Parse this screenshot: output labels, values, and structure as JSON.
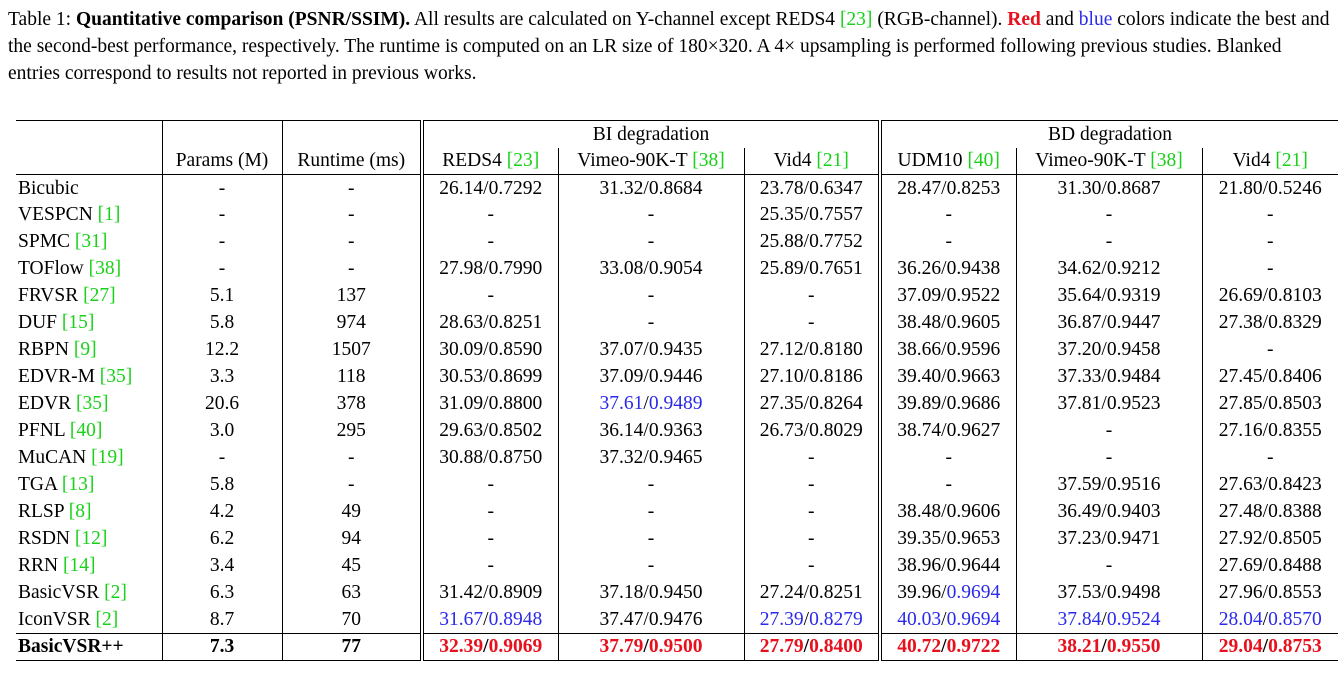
{
  "caption": {
    "label": "Table 1: ",
    "bold_title": "Quantitative comparison (PSNR/SSIM).",
    "text_1": " All results are calculated on Y-channel except REDS4 ",
    "cite_reds4": "[23]",
    "text_2": " (RGB-channel). ",
    "red_word": "Red",
    "text_3": " and ",
    "blue_word": "blue",
    "text_4": " colors indicate the best and the second-best performance, respectively. The runtime is computed on an LR size of 180×320. A 4× upsampling is performed following previous studies. Blanked entries correspond to results not reported in previous works."
  },
  "table": {
    "group_bi": "BI degradation",
    "group_bd": "BD degradation",
    "col_params": "Params (M)",
    "col_runtime": "Runtime (ms)",
    "bi_cols": [
      {
        "name": "REDS4",
        "cite": "[23]"
      },
      {
        "name": "Vimeo-90K-T",
        "cite": "[38]"
      },
      {
        "name": "Vid4",
        "cite": "[21]"
      }
    ],
    "bd_cols": [
      {
        "name": "UDM10",
        "cite": "[40]"
      },
      {
        "name": "Vimeo-90K-T",
        "cite": "[38]"
      },
      {
        "name": "Vid4",
        "cite": "[21]"
      }
    ],
    "rows": [
      {
        "method": "Bicubic",
        "cite": "",
        "params": "-",
        "runtime": "-",
        "vals": [
          "26.14/0.7292",
          "31.32/0.8684",
          "23.78/0.6347",
          "28.47/0.8253",
          "31.30/0.8687",
          "21.80/0.5246"
        ]
      },
      {
        "method": "VESPCN",
        "cite": "[1]",
        "params": "-",
        "runtime": "-",
        "vals": [
          "-",
          "-",
          "25.35/0.7557",
          "-",
          "-",
          "-"
        ]
      },
      {
        "method": "SPMC",
        "cite": "[31]",
        "params": "-",
        "runtime": "-",
        "vals": [
          "-",
          "-",
          "25.88/0.7752",
          "-",
          "-",
          "-"
        ]
      },
      {
        "method": "TOFlow",
        "cite": "[38]",
        "params": "-",
        "runtime": "-",
        "vals": [
          "27.98/0.7990",
          "33.08/0.9054",
          "25.89/0.7651",
          "36.26/0.9438",
          "34.62/0.9212",
          "-"
        ]
      },
      {
        "method": "FRVSR",
        "cite": "[27]",
        "params": "5.1",
        "runtime": "137",
        "vals": [
          "-",
          "-",
          "-",
          "37.09/0.9522",
          "35.64/0.9319",
          "26.69/0.8103"
        ]
      },
      {
        "method": "DUF",
        "cite": "[15]",
        "params": "5.8",
        "runtime": "974",
        "vals": [
          "28.63/0.8251",
          "-",
          "-",
          "38.48/0.9605",
          "36.87/0.9447",
          "27.38/0.8329"
        ]
      },
      {
        "method": "RBPN",
        "cite": "[9]",
        "params": "12.2",
        "runtime": "1507",
        "vals": [
          "30.09/0.8590",
          "37.07/0.9435",
          "27.12/0.8180",
          "38.66/0.9596",
          "37.20/0.9458",
          "-"
        ]
      },
      {
        "method": "EDVR-M",
        "cite": "[35]",
        "params": "3.3",
        "runtime": "118",
        "vals": [
          "30.53/0.8699",
          "37.09/0.9446",
          "27.10/0.8186",
          "39.40/0.9663",
          "37.33/0.9484",
          "27.45/0.8406"
        ]
      },
      {
        "method": "EDVR",
        "cite": "[35]",
        "params": "20.6",
        "runtime": "378",
        "vals": [
          "31.09/0.8800",
          "37.61/0.9489",
          "27.35/0.8264",
          "39.89/0.9686",
          "37.81/0.9523",
          "27.85/0.8503"
        ]
      },
      {
        "method": "PFNL",
        "cite": "[40]",
        "params": "3.0",
        "runtime": "295",
        "vals": [
          "29.63/0.8502",
          "36.14/0.9363",
          "26.73/0.8029",
          "38.74/0.9627",
          "-",
          "27.16/0.8355"
        ]
      },
      {
        "method": "MuCAN",
        "cite": "[19]",
        "params": "-",
        "runtime": "-",
        "vals": [
          "30.88/0.8750",
          "37.32/0.9465",
          "-",
          "-",
          "-",
          "-"
        ]
      },
      {
        "method": "TGA",
        "cite": "[13]",
        "params": "5.8",
        "runtime": "-",
        "vals": [
          "-",
          "-",
          "-",
          "-",
          "37.59/0.9516",
          "27.63/0.8423"
        ]
      },
      {
        "method": "RLSP",
        "cite": "[8]",
        "params": "4.2",
        "runtime": "49",
        "vals": [
          "-",
          "-",
          "-",
          "38.48/0.9606",
          "36.49/0.9403",
          "27.48/0.8388"
        ]
      },
      {
        "method": "RSDN",
        "cite": "[12]",
        "params": "6.2",
        "runtime": "94",
        "vals": [
          "-",
          "-",
          "-",
          "39.35/0.9653",
          "37.23/0.9471",
          "27.92/0.8505"
        ]
      },
      {
        "method": "RRN",
        "cite": "[14]",
        "params": "3.4",
        "runtime": "45",
        "vals": [
          "-",
          "-",
          "-",
          "38.96/0.9644",
          "-",
          "27.69/0.8488"
        ]
      },
      {
        "method": "BasicVSR",
        "cite": "[2]",
        "params": "6.3",
        "runtime": "63",
        "vals": [
          "31.42/0.8909",
          "37.18/0.9450",
          "27.24/0.8251",
          "39.96/0.9694",
          "37.53/0.9498",
          "27.96/0.8553"
        ]
      },
      {
        "method": "IconVSR",
        "cite": "[2]",
        "params": "8.7",
        "runtime": "70",
        "vals": [
          "31.67/0.8948",
          "37.47/0.9476",
          "27.39/0.8279",
          "40.03/0.9694",
          "37.84/0.9524",
          "28.04/0.8570"
        ]
      },
      {
        "method": "BasicVSR++",
        "cite": "",
        "params": "7.3",
        "runtime": "77",
        "vals": [
          "32.39/0.9069",
          "37.79/0.9500",
          "27.79/0.8400",
          "40.72/0.9722",
          "38.21/0.9550",
          "29.04/0.8753"
        ]
      }
    ],
    "highlight_colors": {
      "best": "#e8101c",
      "second": "#2a2ae8",
      "citation": "#19d119"
    },
    "highlights": {
      "EDVR": [
        null,
        [
          "second",
          "second"
        ],
        null,
        null,
        null,
        null
      ],
      "BasicVSR": [
        null,
        null,
        null,
        [
          null,
          "second"
        ],
        null,
        null
      ],
      "IconVSR": [
        [
          "second",
          "second"
        ],
        null,
        [
          "second",
          "second"
        ],
        [
          "second",
          "second"
        ],
        [
          "second",
          "second"
        ],
        [
          "second",
          "second"
        ]
      ],
      "BasicVSR++": [
        [
          "best",
          "best"
        ],
        [
          "best",
          "best"
        ],
        [
          "best",
          "best"
        ],
        [
          "best",
          "best"
        ],
        [
          "best",
          "best"
        ],
        [
          "best",
          "best"
        ]
      ]
    }
  }
}
